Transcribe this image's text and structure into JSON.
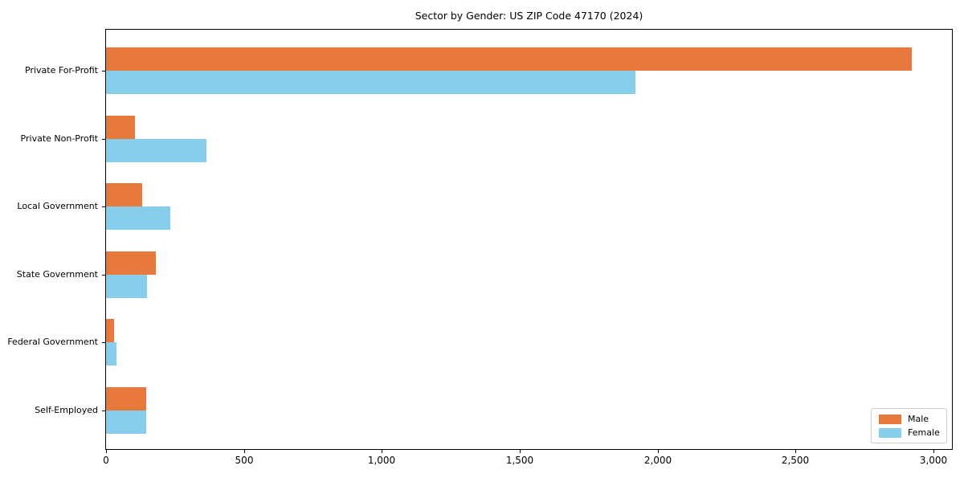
{
  "chart_data": {
    "type": "bar",
    "orientation": "horizontal",
    "title": "Sector by Gender: US ZIP Code 47170 (2024)",
    "categories": [
      "Private For-Profit",
      "Private Non-Profit",
      "Local Government",
      "State Government",
      "Federal Government",
      "Self-Employed"
    ],
    "series": [
      {
        "name": "Male",
        "color": "#e8793c",
        "values": [
          2920,
          105,
          130,
          180,
          28,
          145
        ]
      },
      {
        "name": "Female",
        "color": "#87ceeb",
        "values": [
          1920,
          365,
          233,
          148,
          38,
          145
        ]
      }
    ],
    "xlim": [
      0,
      3067
    ],
    "x_ticks": [
      {
        "value": 0,
        "label": "0"
      },
      {
        "value": 500,
        "label": "500"
      },
      {
        "value": 1000,
        "label": "1,000"
      },
      {
        "value": 1500,
        "label": "1,500"
      },
      {
        "value": 2000,
        "label": "2,000"
      },
      {
        "value": 2500,
        "label": "2,500"
      },
      {
        "value": 3000,
        "label": "3,000"
      }
    ],
    "xlabel": "",
    "ylabel": "",
    "grid": false,
    "legend": {
      "position": "lower right",
      "entries": [
        "Male",
        "Female"
      ]
    },
    "background_color": "#ffffff",
    "axis_color": "#000000"
  }
}
